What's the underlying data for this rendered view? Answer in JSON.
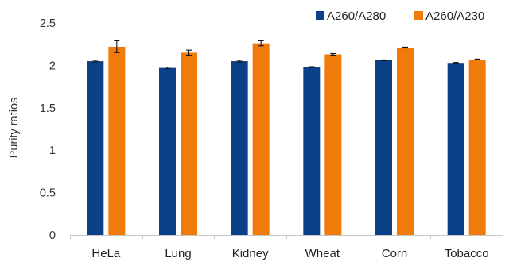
{
  "chart_data": {
    "type": "bar",
    "categories": [
      "HeLa",
      "Lung",
      "Kidney",
      "Wheat",
      "Corn",
      "Tobacco"
    ],
    "series": [
      {
        "name": "A260/A280",
        "color": "#0b4189",
        "values": [
          2.05,
          1.97,
          2.05,
          1.98,
          2.06,
          2.03
        ],
        "errors": [
          0.01,
          0.01,
          0.01,
          0.005,
          0.005,
          0.005
        ]
      },
      {
        "name": "A260/A230",
        "color": "#f07b0b",
        "values": [
          2.22,
          2.15,
          2.26,
          2.13,
          2.21,
          2.07
        ],
        "errors": [
          0.07,
          0.03,
          0.03,
          0.01,
          0.005,
          0.005
        ]
      }
    ],
    "ylabel": "Purity ratios",
    "xlabel": "",
    "ylim": [
      0,
      2.5
    ],
    "yticks": [
      "0",
      "0.5",
      "1",
      "1.5",
      "2",
      "2.5"
    ],
    "grid": false,
    "legend": "top-right"
  }
}
